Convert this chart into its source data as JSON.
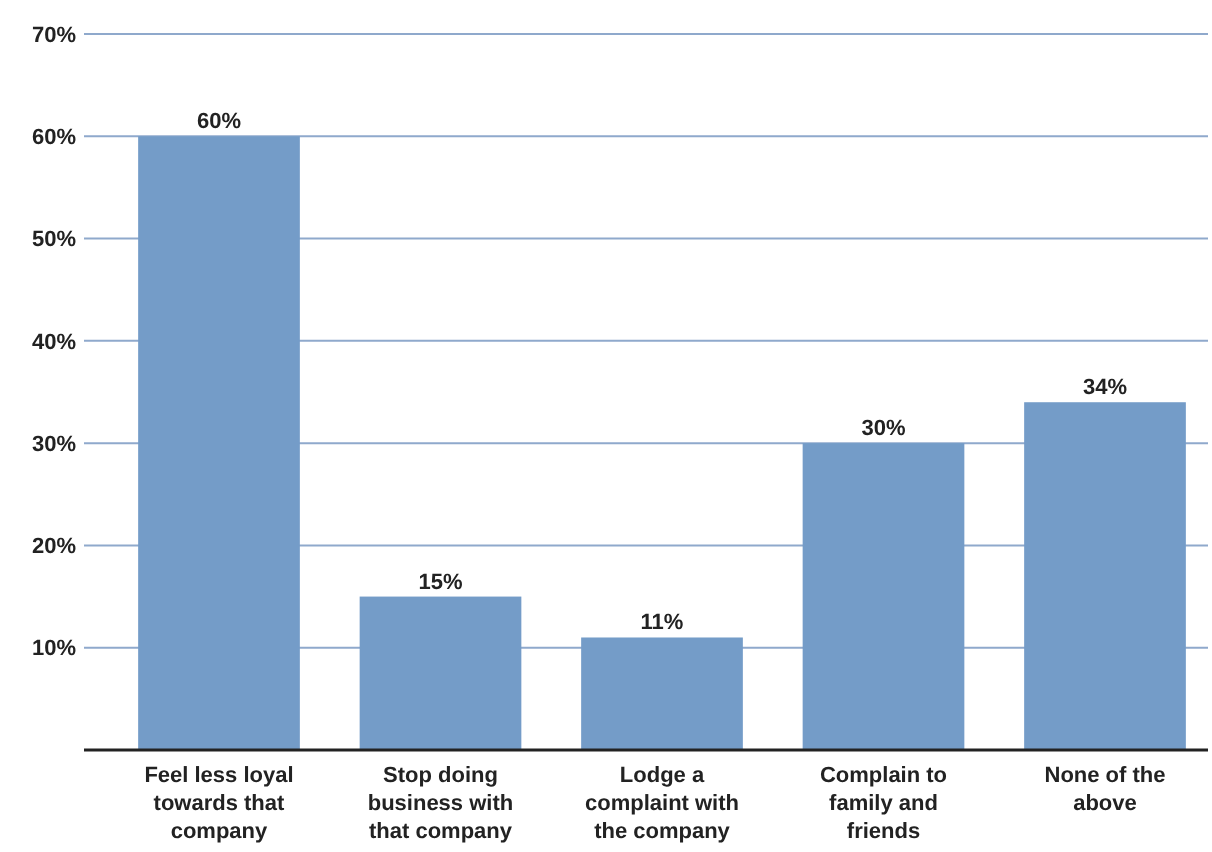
{
  "chart_data": {
    "type": "bar",
    "categories": [
      "Feel less loyal towards that company",
      "Stop doing business with that company",
      "Lodge a complaint with the company",
      "Complain to family and friends",
      "None of the above"
    ],
    "values": [
      60,
      15,
      11,
      30,
      34
    ],
    "value_labels": [
      "60%",
      "15%",
      "11%",
      "30%",
      "34%"
    ],
    "color": "#749cc8",
    "ylim": [
      0,
      70
    ],
    "yticks": [
      {
        "value": 10,
        "label": "10%"
      },
      {
        "value": 20,
        "label": "20%"
      },
      {
        "value": 30,
        "label": "30%"
      },
      {
        "value": 40,
        "label": "40%"
      },
      {
        "value": 50,
        "label": "50%"
      },
      {
        "value": 60,
        "label": "60%"
      },
      {
        "value": 70,
        "label": "70%"
      }
    ],
    "grid": "y"
  }
}
